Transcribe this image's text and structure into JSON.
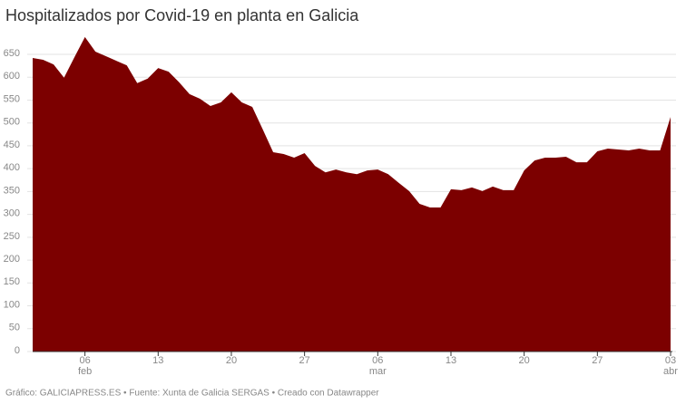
{
  "chart_data": {
    "type": "area",
    "title": "Hospitalizados por Covid-19 en planta en Galicia",
    "footer": "Gráfico: GALICIAPRESS.ES • Fuente: Xunta de Galicia SERGAS • Creado con Datawrapper",
    "color": "#7c0000",
    "grid": true,
    "categories": [
      "02-01",
      "02-02",
      "02-03",
      "02-04",
      "02-05",
      "02-06",
      "02-07",
      "02-08",
      "02-09",
      "02-10",
      "02-11",
      "02-12",
      "02-13",
      "02-14",
      "02-15",
      "02-16",
      "02-17",
      "02-18",
      "02-19",
      "02-20",
      "02-21",
      "02-22",
      "02-23",
      "02-24",
      "02-25",
      "02-26",
      "02-27",
      "02-28",
      "03-01",
      "03-02",
      "03-03",
      "03-04",
      "03-05",
      "03-06",
      "03-07",
      "03-08",
      "03-09",
      "03-10",
      "03-11",
      "03-12",
      "03-13",
      "03-14",
      "03-15",
      "03-16",
      "03-17",
      "03-18",
      "03-19",
      "03-20",
      "03-21",
      "03-22",
      "03-23",
      "03-24",
      "03-25",
      "03-26",
      "03-27",
      "03-28",
      "03-29",
      "03-30",
      "03-31",
      "04-01",
      "04-02",
      "04-03"
    ],
    "values": [
      642,
      638,
      628,
      599,
      644,
      688,
      656,
      646,
      636,
      626,
      587,
      597,
      620,
      612,
      589,
      563,
      553,
      537,
      545,
      567,
      545,
      535,
      486,
      436,
      432,
      424,
      434,
      406,
      392,
      398,
      392,
      388,
      396,
      398,
      388,
      369,
      351,
      323,
      315,
      315,
      355,
      353,
      359,
      351,
      361,
      353,
      353,
      396,
      418,
      424,
      424,
      426,
      414,
      414,
      438,
      444,
      442,
      440,
      444,
      440,
      440,
      513
    ],
    "ylim": [
      0,
      650
    ],
    "yticks": [
      0,
      50,
      100,
      150,
      200,
      250,
      300,
      350,
      400,
      450,
      500,
      550,
      600,
      650
    ],
    "xticks": [
      {
        "value": "02-06",
        "label": "06",
        "month": "feb"
      },
      {
        "value": "02-13",
        "label": "13"
      },
      {
        "value": "02-20",
        "label": "20"
      },
      {
        "value": "02-27",
        "label": "27"
      },
      {
        "value": "03-06",
        "label": "06",
        "month": "mar"
      },
      {
        "value": "03-13",
        "label": "13"
      },
      {
        "value": "03-20",
        "label": "20"
      },
      {
        "value": "03-27",
        "label": "27"
      },
      {
        "value": "04-03",
        "label": "03",
        "month": "abr"
      }
    ]
  }
}
